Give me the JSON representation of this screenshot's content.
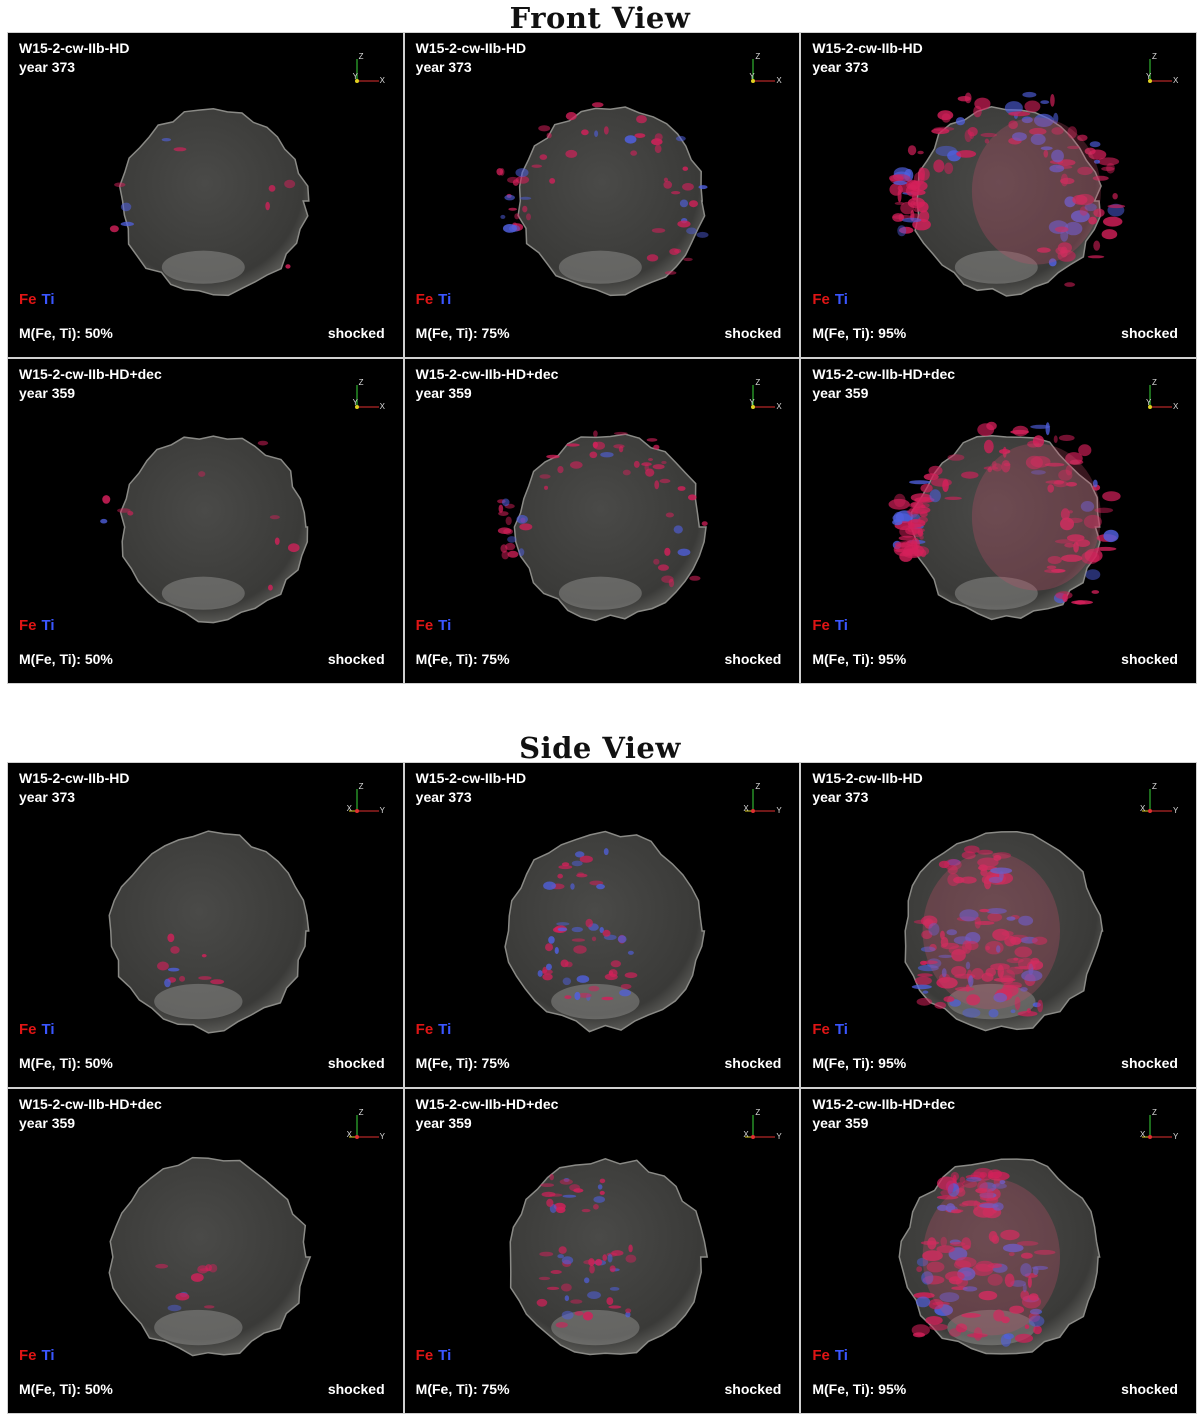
{
  "sections": [
    {
      "title": "Front View",
      "axes": {
        "horizontal": "X",
        "vertical": "Z",
        "depth": "Y"
      },
      "panels": [
        {
          "model": "W15-2-cw-IIb-HD",
          "year": "year 373",
          "mass": "M(Fe, Ti): 50%",
          "state": "shocked"
        },
        {
          "model": "W15-2-cw-IIb-HD",
          "year": "year 373",
          "mass": "M(Fe, Ti): 75%",
          "state": "shocked"
        },
        {
          "model": "W15-2-cw-IIb-HD",
          "year": "year 373",
          "mass": "M(Fe, Ti): 95%",
          "state": "shocked"
        },
        {
          "model": "W15-2-cw-IIb-HD+dec",
          "year": "year 359",
          "mass": "M(Fe, Ti): 50%",
          "state": "shocked"
        },
        {
          "model": "W15-2-cw-IIb-HD+dec",
          "year": "year 359",
          "mass": "M(Fe, Ti): 75%",
          "state": "shocked"
        },
        {
          "model": "W15-2-cw-IIb-HD+dec",
          "year": "year 359",
          "mass": "M(Fe, Ti): 95%",
          "state": "shocked"
        }
      ]
    },
    {
      "title": "Side View",
      "axes": {
        "horizontal": "Y",
        "vertical": "Z",
        "depth": "X"
      },
      "panels": [
        {
          "model": "W15-2-cw-IIb-HD",
          "year": "year 373",
          "mass": "M(Fe, Ti): 50%",
          "state": "shocked"
        },
        {
          "model": "W15-2-cw-IIb-HD",
          "year": "year 373",
          "mass": "M(Fe, Ti): 75%",
          "state": "shocked"
        },
        {
          "model": "W15-2-cw-IIb-HD",
          "year": "year 373",
          "mass": "M(Fe, Ti): 95%",
          "state": "shocked"
        },
        {
          "model": "W15-2-cw-IIb-HD+dec",
          "year": "year 359",
          "mass": "M(Fe, Ti): 50%",
          "state": "shocked"
        },
        {
          "model": "W15-2-cw-IIb-HD+dec",
          "year": "year 359",
          "mass": "M(Fe, Ti): 75%",
          "state": "shocked"
        },
        {
          "model": "W15-2-cw-IIb-HD+dec",
          "year": "year 359",
          "mass": "M(Fe, Ti): 95%",
          "state": "shocked"
        }
      ]
    }
  ],
  "legend": {
    "fe": "Fe",
    "ti": "Ti",
    "fe_color": "#e01515",
    "ti_color": "#3a56ff"
  },
  "colors": {
    "background": "#000000",
    "remnant_shell": "#5a5a58",
    "fe": "#d4205a",
    "ti": "#5060e0"
  }
}
